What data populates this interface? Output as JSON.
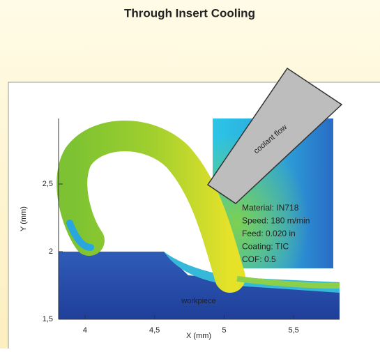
{
  "title": "Through Insert Cooling",
  "plot": {
    "x_label": "X (mm)",
    "y_label": "Y (mm)",
    "xlim": [
      3.81,
      5.83
    ],
    "ylim": [
      1.5,
      3
    ],
    "xticks": [
      4,
      {
        "value": 4.5,
        "label": "4,5"
      },
      5,
      {
        "value": 5.5,
        "label": "5,5"
      }
    ],
    "yticks": [
      {
        "value": 1.5,
        "label": "1,5"
      },
      2,
      {
        "value": 2.5,
        "label": "2,5"
      }
    ],
    "tool_label": "coolant flow",
    "workpiece_label": "workpiece",
    "info": [
      "Material: IN718",
      "Speed: 180 m/min",
      "Feed: 0.020 in",
      "Coating: TIC",
      "COF: 0.5"
    ]
  }
}
